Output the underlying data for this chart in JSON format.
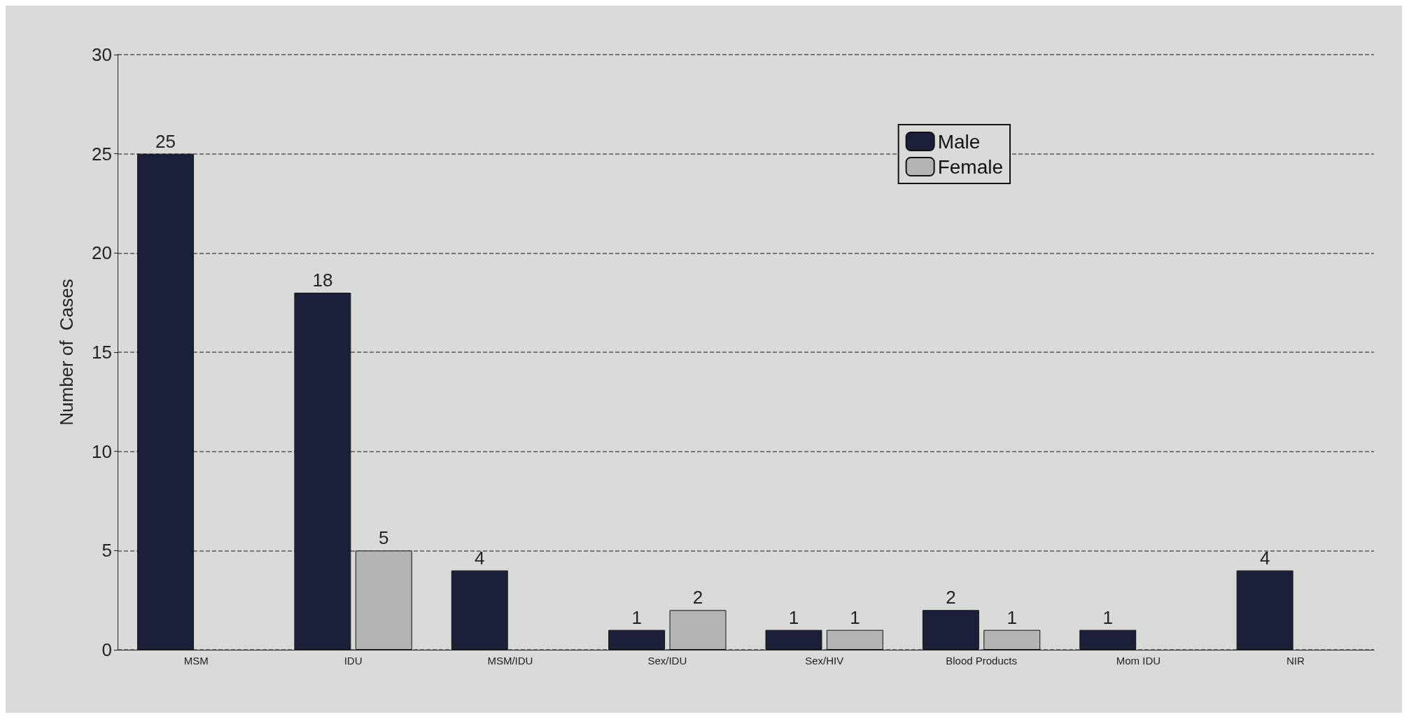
{
  "chart_data": {
    "type": "bar",
    "ylabel": "Number of  Cases",
    "categories": [
      "MSM",
      "IDU",
      "MSM/IDU",
      "Sex/IDU",
      "Sex/HIV",
      "Blood Products",
      "Mom IDU",
      "NIR"
    ],
    "series": [
      {
        "name": "Male",
        "color": "#1c1f3a",
        "values": [
          25,
          18,
          4,
          1,
          1,
          2,
          1,
          4
        ]
      },
      {
        "name": "Female",
        "color": "#b4b4b4",
        "values": [
          null,
          5,
          null,
          2,
          1,
          1,
          null,
          null
        ]
      }
    ],
    "ylim": [
      0,
      30
    ],
    "yticks": [
      0,
      5,
      10,
      15,
      20,
      25,
      30
    ],
    "grid": "y",
    "legend": "top right",
    "data_labels": true
  }
}
